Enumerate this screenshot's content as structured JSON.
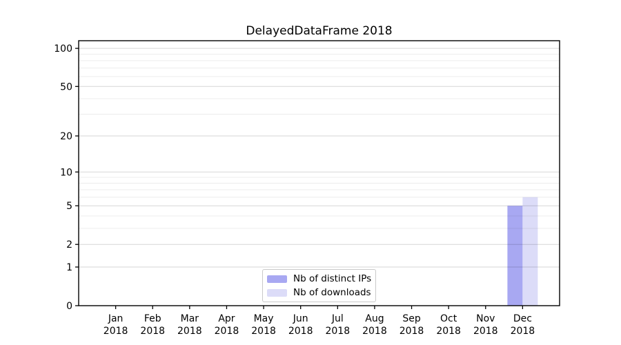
{
  "chart_data": {
    "type": "bar",
    "title": "DelayedDataFrame 2018",
    "categories": [
      "Jan",
      "Feb",
      "Mar",
      "Apr",
      "May",
      "Jun",
      "Jul",
      "Aug",
      "Sep",
      "Oct",
      "Nov",
      "Dec"
    ],
    "category_sublabel": "2018",
    "series": [
      {
        "name": "Nb of distinct IPs",
        "color": "#a8a8f2",
        "values": [
          0,
          0,
          0,
          0,
          0,
          0,
          0,
          0,
          0,
          0,
          0,
          5
        ]
      },
      {
        "name": "Nb of downloads",
        "color": "#dcdcf8",
        "values": [
          0,
          0,
          0,
          0,
          0,
          0,
          0,
          0,
          0,
          0,
          0,
          6
        ]
      }
    ],
    "xlabel": "",
    "ylabel": "",
    "yscale": "log1p",
    "ylim": [
      0,
      115
    ],
    "yticks": [
      0,
      1,
      2,
      5,
      10,
      20,
      50,
      100
    ],
    "minor_gridlines": [
      3,
      4,
      6,
      7,
      8,
      9,
      30,
      40,
      60,
      70,
      80,
      90
    ],
    "grid": true,
    "legend_position": "lower center"
  },
  "colors": {
    "bar_distinct_ips": "#a8a8f2",
    "bar_downloads": "#dcdcf8",
    "spine": "#000000",
    "grid_major": "#d6d6d6",
    "grid_minor": "#ececec",
    "text": "#000000",
    "legend_border": "#c9c9c9"
  }
}
